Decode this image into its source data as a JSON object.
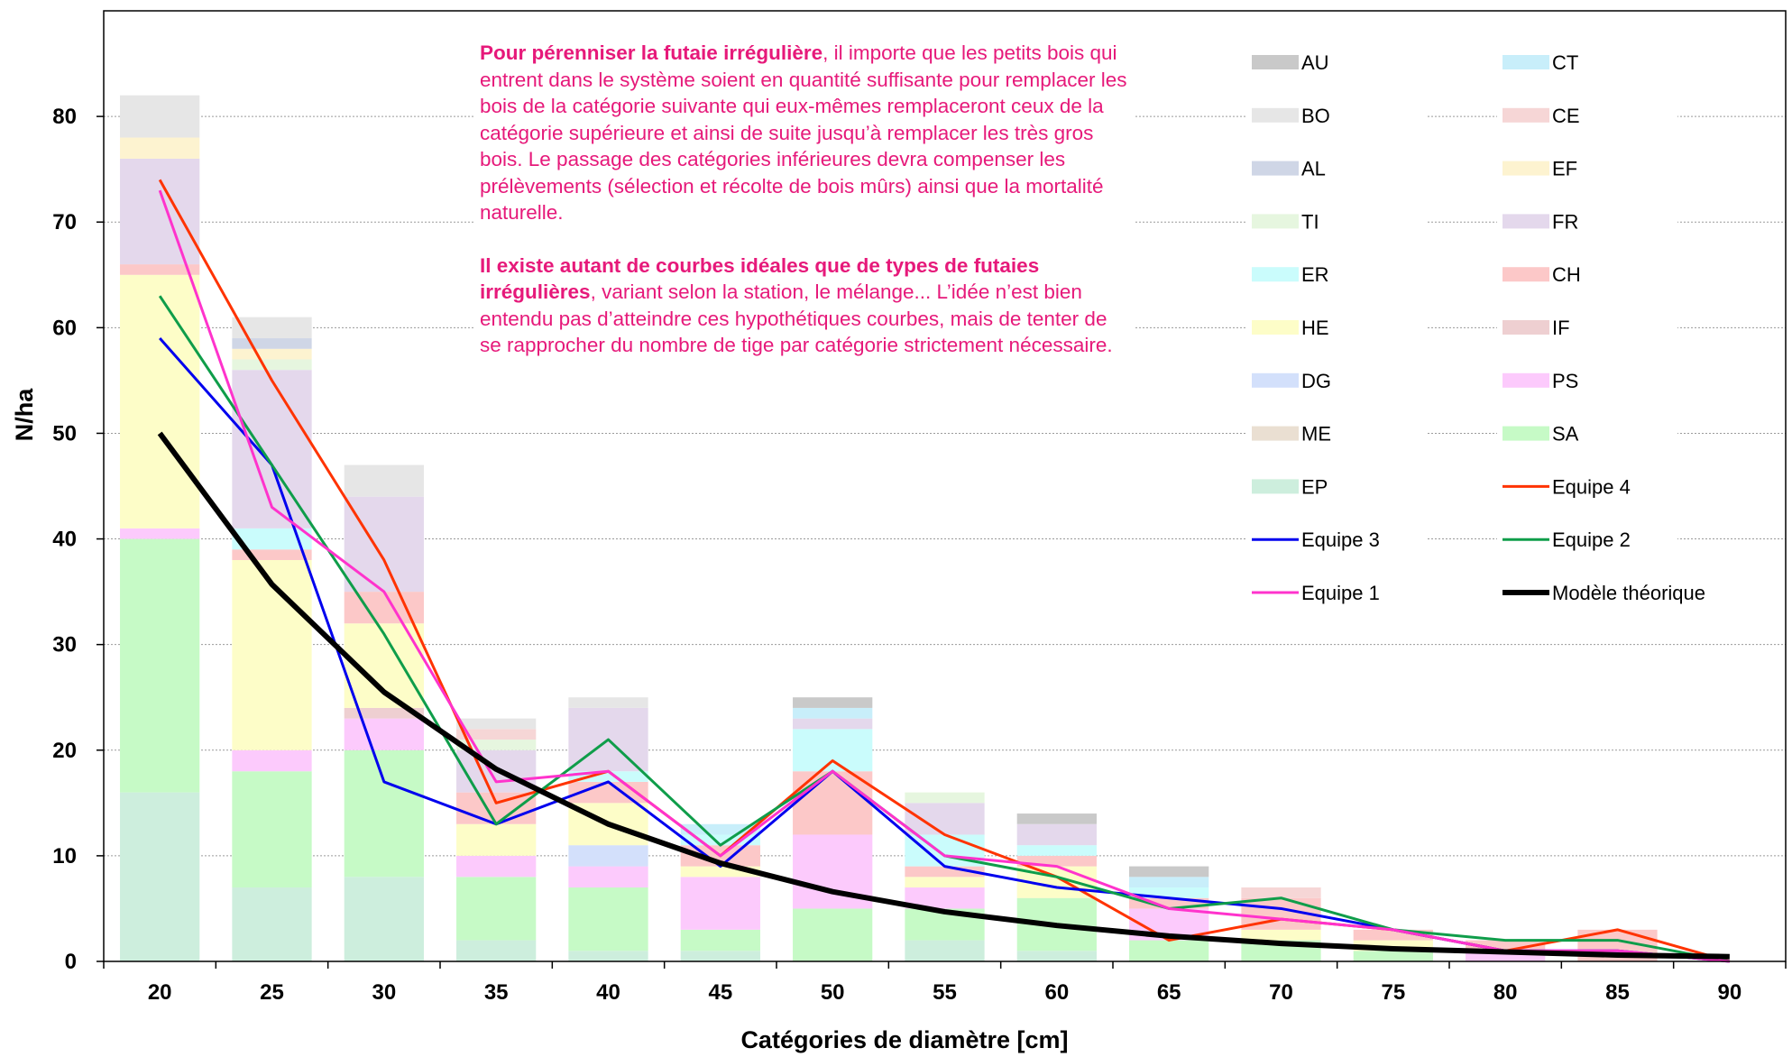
{
  "chart_data": {
    "type": "bar",
    "subtype": "stacked-bar-with-lines",
    "xlabel": "Catégories de diamètre [cm]",
    "ylabel": "N/ha",
    "categories": [
      "20",
      "25",
      "30",
      "35",
      "40",
      "45",
      "50",
      "55",
      "60",
      "65",
      "70",
      "75",
      "80",
      "85",
      "90"
    ],
    "ylim": [
      0,
      90
    ],
    "yticks": [
      0,
      10,
      20,
      30,
      40,
      50,
      60,
      70,
      80
    ],
    "grid": "horizontal-dotted",
    "legend_position": "top-right",
    "stack_series": [
      {
        "name": "EP",
        "color": "#cdeedd",
        "values": [
          16,
          7,
          8,
          2,
          1,
          1,
          0,
          2,
          1,
          0,
          0,
          0,
          0,
          0,
          0
        ]
      },
      {
        "name": "SA",
        "color": "#c6fac6",
        "values": [
          24,
          11,
          12,
          6,
          6,
          2,
          5,
          3,
          5,
          2,
          2,
          1,
          0,
          0,
          0
        ]
      },
      {
        "name": "ME",
        "color": "#eadfd2",
        "values": [
          0,
          0,
          0,
          0,
          0,
          0,
          0,
          0,
          0,
          0,
          0,
          0,
          0,
          0,
          0
        ]
      },
      {
        "name": "PS",
        "color": "#fccafc",
        "values": [
          1,
          2,
          3,
          2,
          2,
          5,
          7,
          2,
          0,
          3,
          0,
          0,
          1,
          0,
          0
        ]
      },
      {
        "name": "DG",
        "color": "#d3e0fb",
        "values": [
          0,
          0,
          0,
          0,
          2,
          0,
          0,
          0,
          0,
          0,
          0,
          0,
          0,
          0,
          0
        ]
      },
      {
        "name": "IF",
        "color": "#eecfd1",
        "values": [
          0,
          0,
          1,
          0,
          0,
          0,
          0,
          0,
          0,
          0,
          0,
          0,
          0,
          0,
          0
        ]
      },
      {
        "name": "HE",
        "color": "#fdfdc8",
        "values": [
          24,
          18,
          8,
          3,
          4,
          1,
          0,
          1,
          3,
          0,
          1,
          1,
          0,
          0,
          0
        ]
      },
      {
        "name": "CH",
        "color": "#fcc8c8",
        "values": [
          1,
          1,
          3,
          3,
          2,
          2,
          6,
          1,
          1,
          1,
          3,
          1,
          1,
          3,
          0
        ]
      },
      {
        "name": "ER",
        "color": "#cafcfc",
        "values": [
          0,
          2,
          0,
          0,
          1,
          1,
          4,
          3,
          1,
          1,
          0,
          0,
          0,
          0,
          0
        ]
      },
      {
        "name": "FR",
        "color": "#e4d8ec",
        "values": [
          10,
          15,
          9,
          4,
          6,
          0,
          1,
          3,
          2,
          0,
          0,
          0,
          0,
          0,
          0
        ]
      },
      {
        "name": "TI",
        "color": "#e6f6df",
        "values": [
          0,
          1,
          0,
          1,
          0,
          0,
          0,
          1,
          0,
          0,
          0,
          0,
          0,
          0,
          0
        ]
      },
      {
        "name": "EF",
        "color": "#fdf3d0",
        "values": [
          2,
          1,
          0,
          0,
          0,
          0,
          0,
          0,
          0,
          0,
          0,
          0,
          0,
          0,
          0
        ]
      },
      {
        "name": "AL",
        "color": "#cfd6e6",
        "values": [
          0,
          1,
          0,
          0,
          0,
          0,
          0,
          0,
          0,
          0,
          0,
          0,
          0,
          0,
          0
        ]
      },
      {
        "name": "CE",
        "color": "#f6d6d6",
        "values": [
          0,
          0,
          0,
          1,
          0,
          0,
          0,
          0,
          0,
          0,
          1,
          0,
          0,
          0,
          0
        ]
      },
      {
        "name": "BO",
        "color": "#e6e6e6",
        "values": [
          4,
          2,
          3,
          1,
          1,
          0,
          0,
          0,
          0,
          0,
          0,
          0,
          0,
          0,
          0
        ]
      },
      {
        "name": "CT",
        "color": "#c8eefa",
        "values": [
          0,
          0,
          0,
          0,
          0,
          1,
          1,
          0,
          0,
          1,
          0,
          0,
          0,
          0,
          0
        ]
      },
      {
        "name": "AU",
        "color": "#c9c9c9",
        "values": [
          0,
          0,
          0,
          0,
          0,
          0,
          1,
          0,
          1,
          1,
          0,
          0,
          0,
          0,
          0
        ]
      }
    ],
    "line_series": [
      {
        "name": "Equipe 4",
        "color": "#ff3300",
        "values": [
          74,
          55,
          38,
          15,
          18,
          10,
          19,
          12,
          8,
          2,
          4,
          3,
          1,
          3,
          0
        ]
      },
      {
        "name": "Equipe 3",
        "color": "#0000ee",
        "values": [
          59,
          47,
          17,
          13,
          17,
          9,
          18,
          9,
          7,
          6,
          5,
          3,
          1,
          1,
          0
        ]
      },
      {
        "name": "Equipe 2",
        "color": "#0f9d4a",
        "values": [
          63,
          47,
          31,
          13,
          21,
          11,
          18,
          10,
          8,
          5,
          6,
          3,
          2,
          2,
          0
        ]
      },
      {
        "name": "Equipe 1",
        "color": "#ff33cc",
        "values": [
          73,
          43,
          35,
          17,
          18,
          10,
          18,
          10,
          9,
          5,
          4,
          3,
          1,
          1,
          0
        ]
      },
      {
        "name": "Modèle théorique",
        "color": "#000000",
        "values": [
          50,
          35.7,
          25.5,
          18.2,
          13,
          9.3,
          6.6,
          4.7,
          3.4,
          2.4,
          1.7,
          1.2,
          0.9,
          0.6,
          0.45
        ]
      }
    ],
    "legend_order": [
      "AU",
      "CT",
      "BO",
      "CE",
      "AL",
      "EF",
      "TI",
      "FR",
      "ER",
      "CH",
      "HE",
      "IF",
      "DG",
      "PS",
      "ME",
      "SA",
      "EP",
      "Equipe 4",
      "Equipe 3",
      "Equipe 2",
      "Equipe 1",
      "Modèle théorique"
    ]
  },
  "annotation": {
    "p1_bold": "Pour pérenniser la futaie irrégulière",
    "p1_rest": ", il importe que les petits bois qui entrent dans le système soient en quantité suffisante pour remplacer les bois de la catégorie suivante qui eux-mêmes remplaceront ceux de la catégorie supérieure et ainsi de suite jusqu’à remplacer les très gros bois. Le passage des catégories inférieures devra compenser les prélèvements (sélection et récolte de bois mûrs) ainsi que la mortalité naturelle.",
    "p2_bold": "Il existe autant de courbes idéales que de types de futaies irrégulières",
    "p2_rest": ", variant selon la station, le mélange... L’idée n’est bien entendu pas d’atteindre ces hypothétiques courbes, mais de tenter de se rapprocher du nombre de tige par catégorie strictement nécessaire."
  },
  "colors": {
    "annotation_text": "#e6197a"
  }
}
